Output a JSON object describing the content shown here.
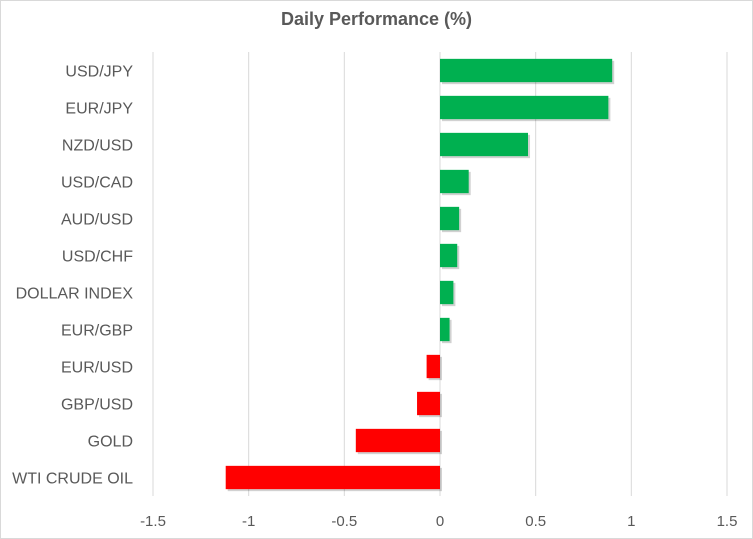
{
  "chart_data": {
    "type": "bar",
    "orientation": "horizontal",
    "title": "Daily Performance (%)",
    "xlabel": "",
    "ylabel": "",
    "categories": [
      "USD/JPY",
      "EUR/JPY",
      "NZD/USD",
      "USD/CAD",
      "AUD/USD",
      "USD/CHF",
      "DOLLAR INDEX",
      "EUR/GBP",
      "EUR/USD",
      "GBP/USD",
      "GOLD",
      "WTI CRUDE OIL"
    ],
    "values": [
      0.9,
      0.88,
      0.46,
      0.15,
      0.1,
      0.09,
      0.07,
      0.05,
      -0.07,
      -0.12,
      -0.44,
      -1.12
    ],
    "xlim": [
      -1.5,
      1.5
    ],
    "xticks": [
      -1.5,
      -1,
      -0.5,
      0,
      0.5,
      1,
      1.5
    ],
    "xtick_labels": [
      "-1.5",
      "-1",
      "-0.5",
      "0",
      "0.5",
      "1",
      "1.5"
    ],
    "grid": "vertical",
    "legend": "none",
    "colors": {
      "positive": "#00b050",
      "negative": "#ff0000",
      "grid": "#d9d9d9",
      "text": "#595959"
    }
  }
}
